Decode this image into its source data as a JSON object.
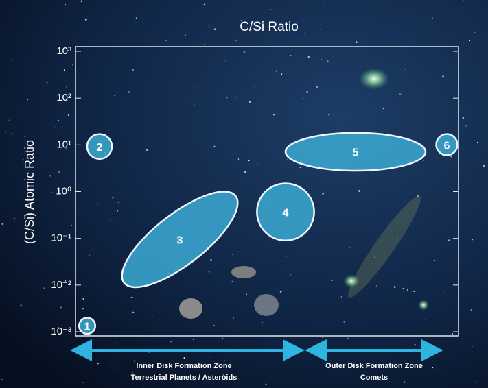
{
  "chart_data": {
    "type": "region",
    "title": "C/Si Ratio",
    "y_label": "(C/Si) Atomic Ratio",
    "y_scale": "log",
    "ylim": [
      0.001,
      1000
    ],
    "yticks": [
      {
        "value": 1000,
        "label": "10³"
      },
      {
        "value": 100,
        "label": "10²"
      },
      {
        "value": 10,
        "label": "10¹"
      },
      {
        "value": 1,
        "label": "10⁰"
      },
      {
        "value": 0.1,
        "label": "10⁻¹"
      },
      {
        "value": 0.01,
        "label": "10⁻²"
      },
      {
        "value": 0.001,
        "label": "10⁻³"
      }
    ],
    "color": "#3aa6cf",
    "regions": [
      {
        "label": "1",
        "ylow": 0.0009,
        "yhigh": 0.002
      },
      {
        "label": "2",
        "ylow": 5,
        "yhigh": 17
      },
      {
        "label": "3",
        "ylow": 0.009,
        "yhigh": 1
      },
      {
        "label": "4",
        "ylow": 0.09,
        "yhigh": 1.5
      },
      {
        "label": "5",
        "ylow": 2.8,
        "yhigh": 18
      },
      {
        "label": "6",
        "ylow": 6,
        "yhigh": 17
      }
    ],
    "zones": [
      {
        "title": "Inner Disk Formation Zone",
        "subtitle": "Terrestrial Planets / Asteroids"
      },
      {
        "title": "Outer Disk Formation Zone",
        "subtitle": "Comets"
      }
    ]
  }
}
